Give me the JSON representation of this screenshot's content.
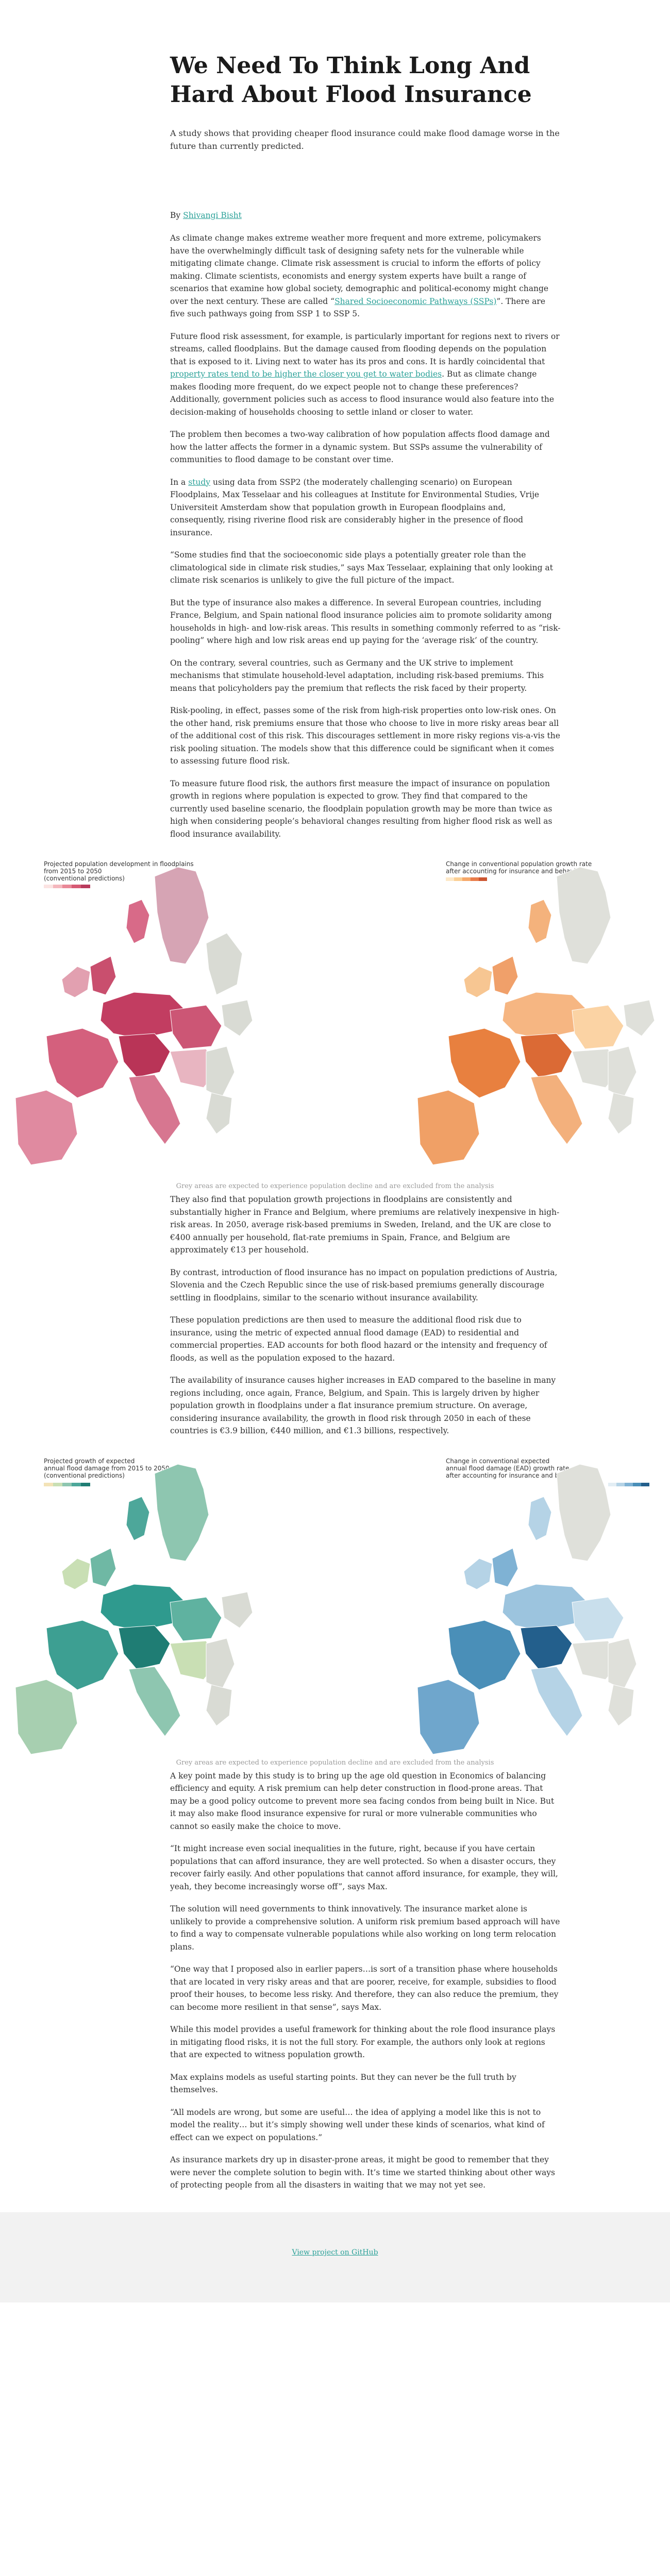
{
  "title": "We Need To Think Long And Hard About Flood Insurance",
  "subtitle": "A study shows that providing cheaper flood insurance could make flood damage worse in the future than currently predicted.",
  "byline": {
    "prefix": "By ",
    "author": "Shivangi Bisht"
  },
  "paragraphs": {
    "p1a": "As climate change makes extreme weather more frequent and more extreme, policymakers have the overwhelmingly difficult task of designing safety nets for the vulnerable while mitigating climate change. Climate risk assessment is crucial to inform the efforts of policy making. Climate scientists, economists and energy system experts have built a range of scenarios that examine how global society, demographic and political-economy might change over the next century. These are called “",
    "p1link": "Shared Socioeconomic Pathways (SSPs)",
    "p1b": "”. There are five such pathways going from SSP 1 to SSP 5.",
    "p2a": "Future flood risk assessment, for example, is particularly important for regions next to rivers or streams, called floodplains. But the damage caused from flooding depends on the population that is exposed to it. Living next to water has its pros and cons. It is hardly coincidental that ",
    "p2link": "property rates tend to be higher the closer you get to water bodies",
    "p2b": ". But as climate change makes flooding more frequent, do we expect people not to change these preferences? Additionally, government policies such as access to flood insurance would also feature into the decision-making of households choosing to settle inland or closer to water.",
    "p3": "The problem then becomes a two-way calibration of how population affects flood damage and how the latter affects the former in a dynamic system. But SSPs assume the vulnerability of communities to flood damage to be constant over time.",
    "p4a": "In a ",
    "p4link": "study",
    "p4b": " using data from SSP2 (the moderately challenging scenario) on European Floodplains, Max Tesselaar and his colleagues at Institute for Environmental Studies, Vrije Universiteit Amsterdam show that population growth in European floodplains and, consequently, rising riverine flood risk are considerably higher in the presence of flood insurance.",
    "p5": "“Some studies find that the socioeconomic side plays a potentially greater role than the climatological side in climate risk studies,” says Max Tesselaar, explaining that only looking at climate risk scenarios is unlikely to give the full picture of the impact.",
    "p6": "But the type of insurance also makes a difference. In several European countries, including France, Belgium, and Spain national flood insurance policies aim to promote solidarity among households in high- and low-risk areas. This results in something commonly referred to as “risk-pooling” where high and low risk areas end up paying for the ‘average risk’ of the country.",
    "p7": "On the contrary, several countries, such as Germany and the UK strive to implement mechanisms that stimulate household-level adaptation, including risk-based premiums. This means that policyholders pay the premium that reflects the risk faced by their property.",
    "p8": "Risk-pooling, in effect, passes some of the risk from high-risk properties onto low-risk ones. On the other hand, risk premiums ensure that those who choose to live in more risky areas bear all of the additional cost of this risk. This discourages settlement in more risky regions vis-a-vis the risk pooling situation. The models show that this difference could be significant when it comes to assessing future flood risk.",
    "p9": "To measure future flood risk, the authors first measure the impact of insurance on population growth in regions where population is expected to grow. They find that compared to the currently used baseline scenario, the floodplain population growth may be more than twice as high when considering people’s behavioral changes resulting from higher flood risk as well as flood insurance availability.",
    "p10": "They also find that population growth projections in floodplains are consistently and substantially higher in France and Belgium, where premiums are relatively inexpensive in high-risk areas. In 2050, average risk-based premiums in Sweden, Ireland, and the UK are close to €400 annually per household, flat-rate premiums in Spain, France, and Belgium are approximately €13 per household.",
    "p11": "By contrast, introduction of flood insurance has no impact on population predictions of Austria, Slovenia and the Czech Republic since the use of risk-based premiums generally discourage settling in floodplains, similar to the scenario without insurance availability.",
    "p12": "These population predictions are then used to measure the additional flood risk due to insurance, using the metric of expected annual flood damage (EAD) to residential and commercial properties. EAD accounts for both flood hazard or the intensity and frequency of floods, as well as the population exposed to the hazard.",
    "p13": "The availability of insurance causes higher increases in EAD compared to the baseline in many regions including, once again, France, Belgium, and Spain. This is largely driven by higher population growth in floodplains under a flat insurance premium structure. On average, considering insurance availability, the growth in flood risk through 2050 in each of these countries is €3.9 billion, €440 million, and €1.3 billions, respectively.",
    "p14": "A key point made by this study is to bring up the age old question in Economics of balancing efficiency and equity. A risk premium can help deter construction in flood-prone areas. That may be a good policy outcome to prevent more sea facing condos from being built in Nice. But it may also make flood insurance expensive for rural or more vulnerable communities who cannot so easily make the choice to move.",
    "p15": "“It might increase even social inequalities in the future, right, because if you have certain populations that can afford insurance, they are well protected. So when a disaster occurs, they recover fairly easily. And other populations that cannot afford insurance, for example, they will, yeah, they become increasingly worse off”, says Max.",
    "p16": "The solution will need governments to think innovatively. The insurance market alone is unlikely to provide a comprehensive solution. A uniform risk premium based approach will have to find a way to compensate vulnerable populations while also working on long term relocation plans.",
    "p17": "“One way that I proposed also in earlier papers…is sort of a transition phase where households that are located in very risky areas and that are poorer, receive, for example, subsidies to flood proof their houses, to become less risky. And therefore, they can also reduce the premium, they can become more resilient in that sense”, says Max.",
    "p18": "While this model provides a useful framework for thinking about the role flood insurance plays in mitigating flood risks, it is not the full story. For example, the authors only look at regions that are expected to witness population growth.",
    "p19": "Max explains models as useful starting points. But they can never be the full truth by themselves.",
    "p20": "“All models are wrong, but some are useful… the idea of applying a model like this is not to model the reality… but it’s simply showing well under these kinds of scenarios, what kind of effect can we expect on populations.”",
    "p21": "As insurance markets dry up in disaster-prone areas, it might be good to remember that they were never the complete solution to begin with. It’s time we started thinking about other ways of protecting people from all the disasters in waiting that we may not yet see."
  },
  "figure1": {
    "left_title_1": "Projected population development in floodplains",
    "left_title_2": "from 2015 to 2050",
    "left_title_3": "(conventional predictions)",
    "right_title_1": "Change in conventional population growth rate",
    "right_title_2": "after accounting for insurance and behaviour",
    "caption": "Grey areas are expected to experience population decline and are excluded from the analysis",
    "left_color": "#c83c5c",
    "right_color": "#e8804a"
  },
  "figure2": {
    "left_title_1": "Projected growth of expected",
    "left_title_2": "annual flood damage from 2015 to 2050",
    "left_title_3": "(conventional predictions)",
    "right_title_1": "Change in conventional expected",
    "right_title_2": "annual flood damage (EAD) growth rate",
    "right_title_3": "after accounting for insurance and behaviour",
    "caption": "Grey areas are expected to experience population decline and are excluded from the analysis",
    "left_color": "#2f9a8e",
    "right_color": "#4a8fb8"
  },
  "footer": {
    "link": "View project on GitHub"
  }
}
